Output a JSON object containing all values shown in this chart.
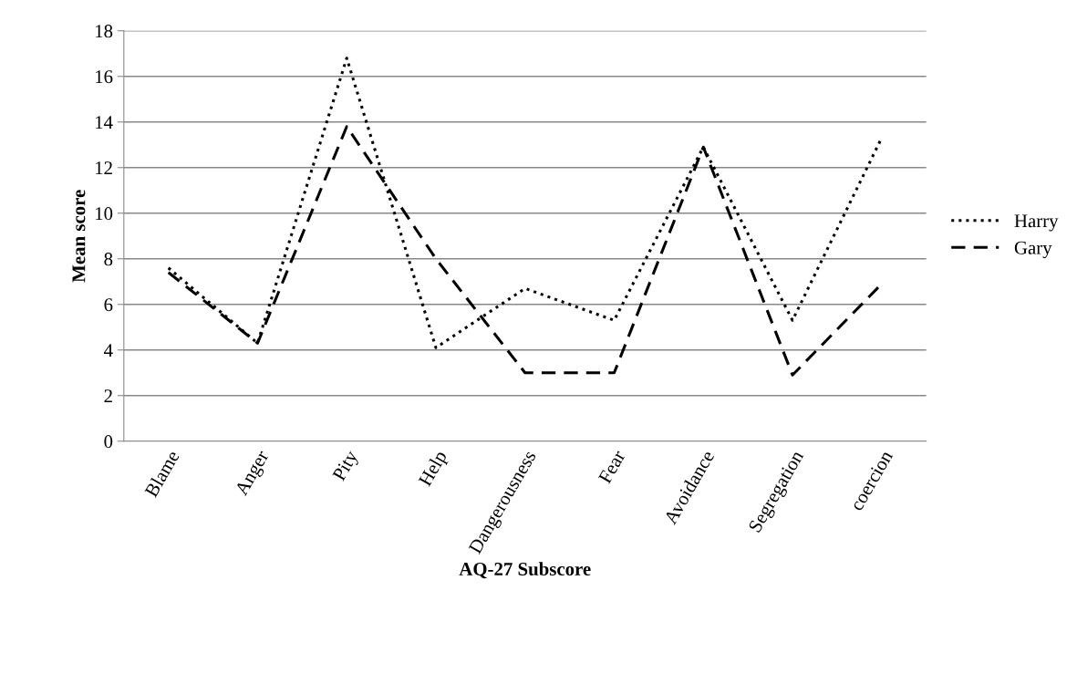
{
  "chart_data": {
    "type": "line",
    "xlabel": "AQ-27 Subscore",
    "ylabel": "Mean score",
    "categories": [
      "Blame",
      "Anger",
      "Pity",
      "Help",
      "Dangerousness",
      "Fear",
      "Avoidance",
      "Segregation",
      "coercion"
    ],
    "series": [
      {
        "name": "Harry",
        "color": "#000000",
        "line_style": "dotted",
        "values": [
          7.6,
          4.3,
          16.8,
          4.1,
          6.7,
          5.3,
          12.9,
          5.3,
          13.3
        ]
      },
      {
        "name": "Gary",
        "color": "#000000",
        "line_style": "dashed",
        "values": [
          7.4,
          4.3,
          13.8,
          8.0,
          3.0,
          3.0,
          12.9,
          2.9,
          6.9
        ]
      }
    ],
    "ylim": [
      0,
      18
    ],
    "yticks": [
      0,
      2,
      4,
      6,
      8,
      10,
      12,
      14,
      16,
      18
    ],
    "grid": "y",
    "legend": "right",
    "marker": "none"
  }
}
